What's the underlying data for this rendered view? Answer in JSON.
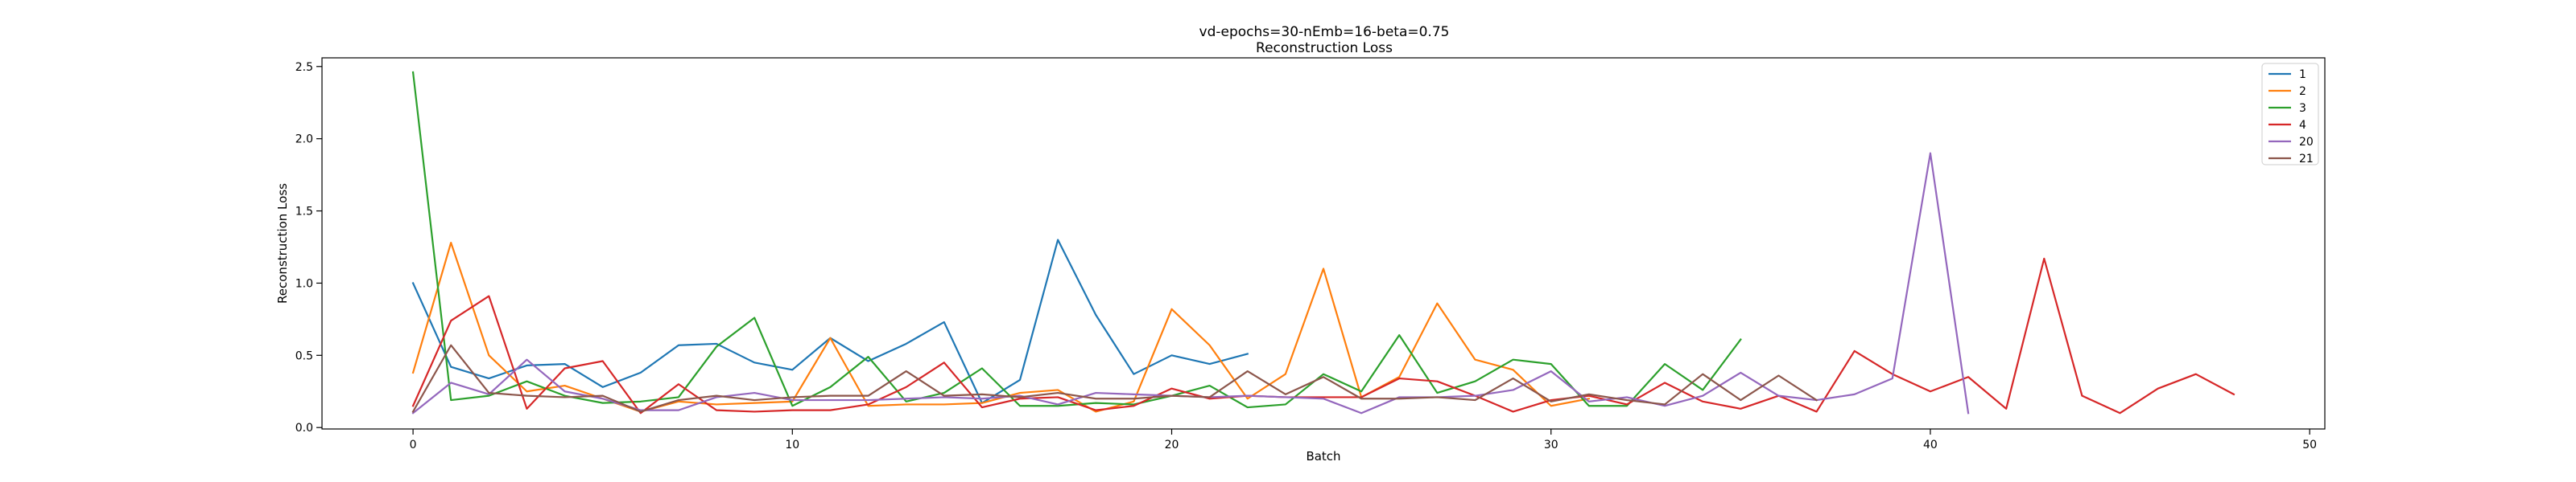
{
  "chart_data": {
    "type": "line",
    "title": "vd-epochs=30-nEmb=16-beta=0.75",
    "subtitle": "Reconstruction Loss",
    "xlabel": "Batch",
    "ylabel": "Reconstruction Loss",
    "xlim": [
      -2.4,
      50.4
    ],
    "ylim": [
      -0.01,
      2.56
    ],
    "xticks": [
      0,
      10,
      20,
      30,
      40,
      50
    ],
    "yticks": [
      0.0,
      0.5,
      1.0,
      1.5,
      2.0,
      2.5
    ],
    "xtick_labels": [
      "0",
      "10",
      "20",
      "30",
      "40",
      "50"
    ],
    "ytick_labels": [
      "0.0",
      "0.5",
      "1.0",
      "1.5",
      "2.0",
      "2.5"
    ],
    "grid": false,
    "legend_position": "top-right",
    "series": [
      {
        "name": "1",
        "color": "#1f77b4",
        "values": [
          1.0,
          0.42,
          0.34,
          0.43,
          0.44,
          0.28,
          0.38,
          0.57,
          0.58,
          0.45,
          0.4,
          0.62,
          0.46,
          0.58,
          0.73,
          0.17,
          0.33,
          1.3,
          0.78,
          0.37,
          0.5,
          0.44,
          0.51
        ]
      },
      {
        "name": "2",
        "color": "#ff7f0e",
        "values": [
          0.38,
          1.28,
          0.5,
          0.25,
          0.29,
          0.2,
          0.11,
          0.18,
          0.16,
          0.17,
          0.18,
          0.62,
          0.15,
          0.16,
          0.16,
          0.17,
          0.24,
          0.26,
          0.11,
          0.18,
          0.82,
          0.57,
          0.2,
          0.37,
          1.1,
          0.21,
          0.35,
          0.86,
          0.47,
          0.4,
          0.15,
          0.2
        ]
      },
      {
        "name": "3",
        "color": "#2ca02c",
        "values": [
          2.46,
          0.19,
          0.22,
          0.32,
          0.22,
          0.17,
          0.18,
          0.21,
          0.56,
          0.76,
          0.15,
          0.28,
          0.49,
          0.18,
          0.24,
          0.41,
          0.15,
          0.15,
          0.17,
          0.16,
          0.22,
          0.29,
          0.14,
          0.16,
          0.37,
          0.25,
          0.64,
          0.24,
          0.32,
          0.47,
          0.44,
          0.15,
          0.15,
          0.44,
          0.26,
          0.61
        ]
      },
      {
        "name": "4",
        "color": "#d62728",
        "values": [
          0.15,
          0.74,
          0.91,
          0.13,
          0.41,
          0.46,
          0.1,
          0.3,
          0.12,
          0.11,
          0.12,
          0.12,
          0.16,
          0.28,
          0.45,
          0.14,
          0.2,
          0.21,
          0.12,
          0.15,
          0.27,
          0.2,
          0.22,
          0.21,
          0.21,
          0.21,
          0.34,
          0.32,
          0.22,
          0.11,
          0.19,
          0.22,
          0.16,
          0.31,
          0.18,
          0.13,
          0.22,
          0.11,
          0.53,
          0.37,
          0.25,
          0.35,
          0.13,
          1.17,
          0.22,
          0.1,
          0.27,
          0.37,
          0.23
        ]
      },
      {
        "name": "20",
        "color": "#9467bd",
        "values": [
          0.1,
          0.31,
          0.23,
          0.47,
          0.25,
          0.2,
          0.12,
          0.12,
          0.21,
          0.24,
          0.19,
          0.19,
          0.19,
          0.2,
          0.21,
          0.2,
          0.22,
          0.16,
          0.24,
          0.23,
          0.22,
          0.21,
          0.22,
          0.21,
          0.2,
          0.1,
          0.21,
          0.21,
          0.22,
          0.26,
          0.39,
          0.18,
          0.21,
          0.15,
          0.22,
          0.38,
          0.22,
          0.19,
          0.23,
          0.34,
          1.9,
          0.1
        ]
      },
      {
        "name": "21",
        "color": "#8c564b",
        "values": [
          0.11,
          0.57,
          0.24,
          0.22,
          0.21,
          0.22,
          0.11,
          0.19,
          0.22,
          0.19,
          0.21,
          0.22,
          0.22,
          0.39,
          0.22,
          0.23,
          0.21,
          0.24,
          0.2,
          0.2,
          0.22,
          0.21,
          0.39,
          0.23,
          0.35,
          0.2,
          0.2,
          0.21,
          0.19,
          0.34,
          0.18,
          0.23,
          0.19,
          0.16,
          0.37,
          0.19,
          0.36,
          0.19
        ]
      }
    ]
  }
}
